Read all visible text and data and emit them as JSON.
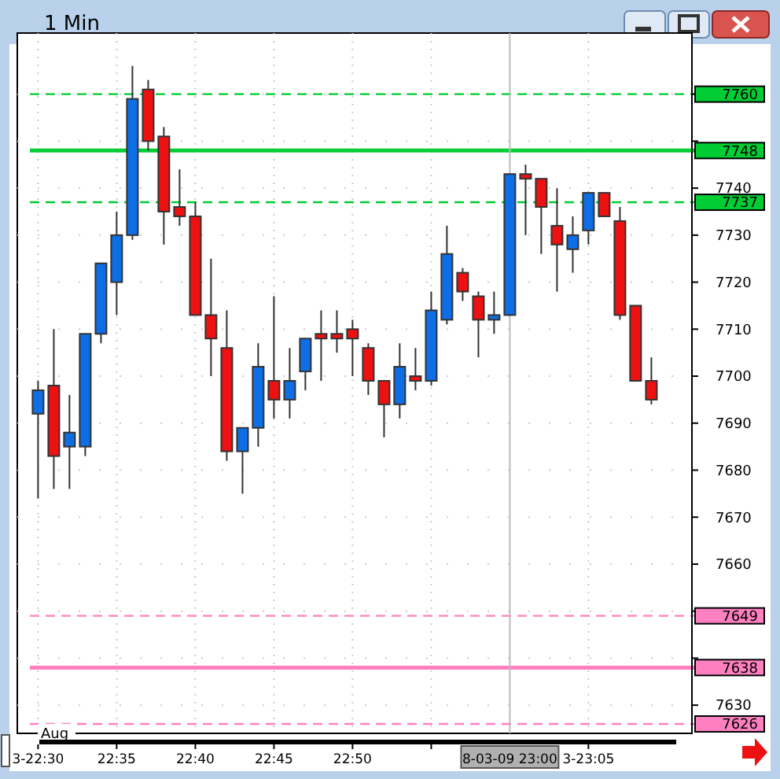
{
  "chart_data": {
    "type": "candlestick",
    "title": "1 Min",
    "x": [
      22.5,
      22.5167,
      22.5333,
      22.55,
      22.5667,
      22.5833,
      22.6,
      22.6167,
      22.6333,
      22.65,
      22.6667,
      22.6833,
      22.7,
      22.7167,
      22.7333,
      22.75,
      22.7667,
      22.7833,
      22.8,
      22.8167,
      22.8333,
      22.85,
      22.8667,
      22.8833,
      22.9,
      22.9167,
      22.9333,
      22.95,
      22.9667,
      22.9833,
      23,
      23.0167,
      23.0333,
      23.05,
      23.0667,
      23.0833,
      23.1,
      23.1167,
      23.1333,
      23.15
    ],
    "ohlc": [
      [
        7692,
        7699,
        7674,
        7697
      ],
      [
        7698,
        7710,
        7676,
        7683
      ],
      [
        7685,
        7696,
        7676,
        7688
      ],
      [
        7685,
        7709,
        7683,
        7709
      ],
      [
        7709,
        7724,
        7707,
        7724
      ],
      [
        7720,
        7735,
        7713,
        7730
      ],
      [
        7730,
        7766,
        7729,
        7759
      ],
      [
        7761,
        7763,
        7748,
        7750
      ],
      [
        7751,
        7753,
        7728,
        7735
      ],
      [
        7736,
        7744,
        7732,
        7734
      ],
      [
        7734,
        7737,
        7713,
        7713
      ],
      [
        7713,
        7725,
        7700,
        7708
      ],
      [
        7706,
        7714,
        7682,
        7684
      ],
      [
        7684,
        7689,
        7675,
        7689
      ],
      [
        7689,
        7707,
        7685,
        7702
      ],
      [
        7699,
        7717,
        7691,
        7695
      ],
      [
        7695,
        7706,
        7691,
        7699
      ],
      [
        7701,
        7708,
        7697,
        7708
      ],
      [
        7709,
        7714,
        7699,
        7708
      ],
      [
        7709,
        7714,
        7705,
        7708
      ],
      [
        7710,
        7712,
        7700,
        7708
      ],
      [
        7706,
        7707,
        7696,
        7699
      ],
      [
        7699,
        7699,
        7687,
        7694
      ],
      [
        7694,
        7707,
        7691,
        7702
      ],
      [
        7700,
        7706,
        7697,
        7699
      ],
      [
        7699,
        7718,
        7698,
        7714
      ],
      [
        7712,
        7732,
        7711,
        7726
      ],
      [
        7722,
        7723,
        7716,
        7718
      ],
      [
        7717,
        7718,
        7704,
        7712
      ],
      [
        7712,
        7718,
        7709,
        7713
      ],
      [
        7713,
        7743,
        7713,
        7743
      ],
      [
        7743,
        7745,
        7730,
        7742
      ],
      [
        7742,
        7742,
        7726,
        7736
      ],
      [
        7732,
        7740,
        7718,
        7728
      ],
      [
        7727,
        7734,
        7722,
        7730
      ],
      [
        7731,
        7739,
        7728,
        7739
      ],
      [
        7739,
        7739,
        7734,
        7734
      ],
      [
        7733,
        7736,
        7712,
        7713
      ],
      [
        7715,
        7715,
        7699,
        7699
      ],
      [
        7699,
        7704,
        7694,
        7695
      ]
    ],
    "colors": [
      "#0d6ee6",
      "#ee1111",
      "#0d6ee6",
      "#0d6ee6",
      "#0d6ee6",
      "#0d6ee6",
      "#0d6ee6",
      "#ee1111",
      "#ee1111",
      "#ee1111",
      "#ee1111",
      "#ee1111",
      "#ee1111",
      "#0d6ee6",
      "#0d6ee6",
      "#ee1111",
      "#0d6ee6",
      "#0d6ee6",
      "#ee1111",
      "#ee1111",
      "#ee1111",
      "#ee1111",
      "#ee1111",
      "#0d6ee6",
      "#ee1111",
      "#0d6ee6",
      "#0d6ee6",
      "#ee1111",
      "#ee1111",
      "#0d6ee6",
      "#0d6ee6",
      "#ee1111",
      "#ee1111",
      "#ee1111",
      "#0d6ee6",
      "#0d6ee6",
      "#ee1111",
      "#ee1111",
      "#ee1111",
      "#ee1111"
    ],
    "xlim": [
      22.478,
      23.193
    ],
    "xticks": [
      {
        "value": 22.5,
        "label": "3-22:30"
      },
      {
        "value": 22.5833,
        "label": "22:35"
      },
      {
        "value": 22.6667,
        "label": "22:40"
      },
      {
        "value": 22.75,
        "label": "22:45"
      },
      {
        "value": 22.8333,
        "label": "22:50"
      },
      {
        "value": 22.9167,
        "label": null
      },
      {
        "value": 23.0833,
        "label": "3-23:05"
      }
    ],
    "ylim": [
      7624,
      7773
    ],
    "yticks": [
      7630,
      {
        "value": 7640,
        "label": null
      },
      {
        "value": 7650,
        "label": null
      },
      7660,
      7670,
      7680,
      7690,
      7700,
      7710,
      7720,
      7730,
      7740,
      {
        "value": 7750,
        "label": null
      },
      {
        "value": 7760,
        "label": null
      }
    ],
    "grid": true,
    "ref_lines": [
      {
        "axis": "y",
        "value": 7760,
        "label": "7760",
        "color": "#00cc33",
        "line_style": "dashed"
      },
      {
        "axis": "y",
        "value": 7748,
        "label": "7748",
        "color": "#00cc33",
        "line_style": "solid"
      },
      {
        "axis": "y",
        "value": 7737,
        "label": "7737",
        "color": "#00cc33",
        "line_style": "dashed"
      },
      {
        "axis": "y",
        "value": 7649,
        "label": "7649",
        "color": "#ff80c0",
        "line_style": "dashed"
      },
      {
        "axis": "y",
        "value": 7638,
        "label": "7638",
        "color": "#ff80c0",
        "line_style": "solid"
      },
      {
        "axis": "y",
        "value": 7626,
        "label": "7626",
        "color": "#ff80c0",
        "line_style": "dashed"
      },
      {
        "axis": "x",
        "value": 23,
        "label": "8-03-09 23:00",
        "color": "#bbbbbb",
        "line_style": "solid"
      }
    ],
    "annotations": [
      "Aug"
    ]
  }
}
